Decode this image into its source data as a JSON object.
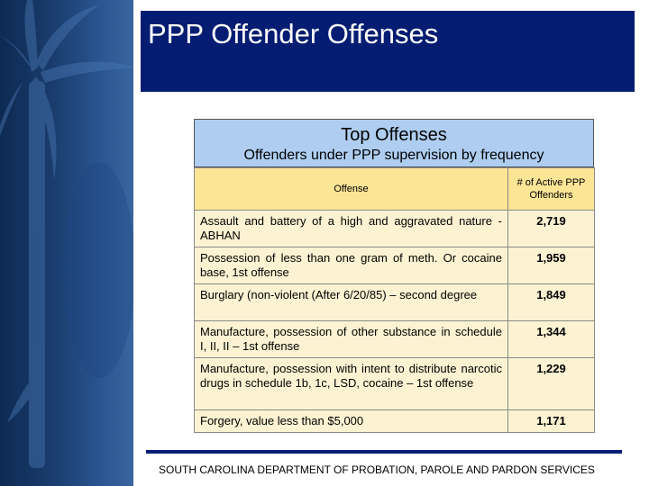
{
  "title": "PPP Offender Offenses",
  "caption": {
    "title": "Top Offenses",
    "subtitle": "Offenders under PPP supervision by frequency"
  },
  "table": {
    "headers": [
      "Offense",
      "# of Active PPP Offenders"
    ],
    "rows": [
      {
        "offense": "Assault and battery of a high and aggravated nature - ABHAN",
        "count": "2,719"
      },
      {
        "offense": "Possession of less than one gram of meth. Or cocaine base, 1st offense",
        "count": "1,959"
      },
      {
        "offense": "Burglary (non-violent (After 6/20/85) – second degree",
        "count": "1,849"
      },
      {
        "offense": "Manufacture, possession of other substance in schedule I, II, II – 1st offense",
        "count": "1,344"
      },
      {
        "offense": "Manufacture, possession with intent to distribute narcotic drugs in schedule 1b, 1c, LSD, cocaine – 1st offense",
        "count": "1,229"
      },
      {
        "offense": "Forgery, value less than $5,000",
        "count": "1,171"
      }
    ]
  },
  "footer": "SOUTH CAROLINA DEPARTMENT OF PROBATION, PAROLE AND PARDON SERVICES",
  "colors": {
    "title_bar": "#041d72",
    "caption_bg": "#aecdf0",
    "header_bg": "#fde596",
    "row_bg": "#fdf3d2"
  }
}
